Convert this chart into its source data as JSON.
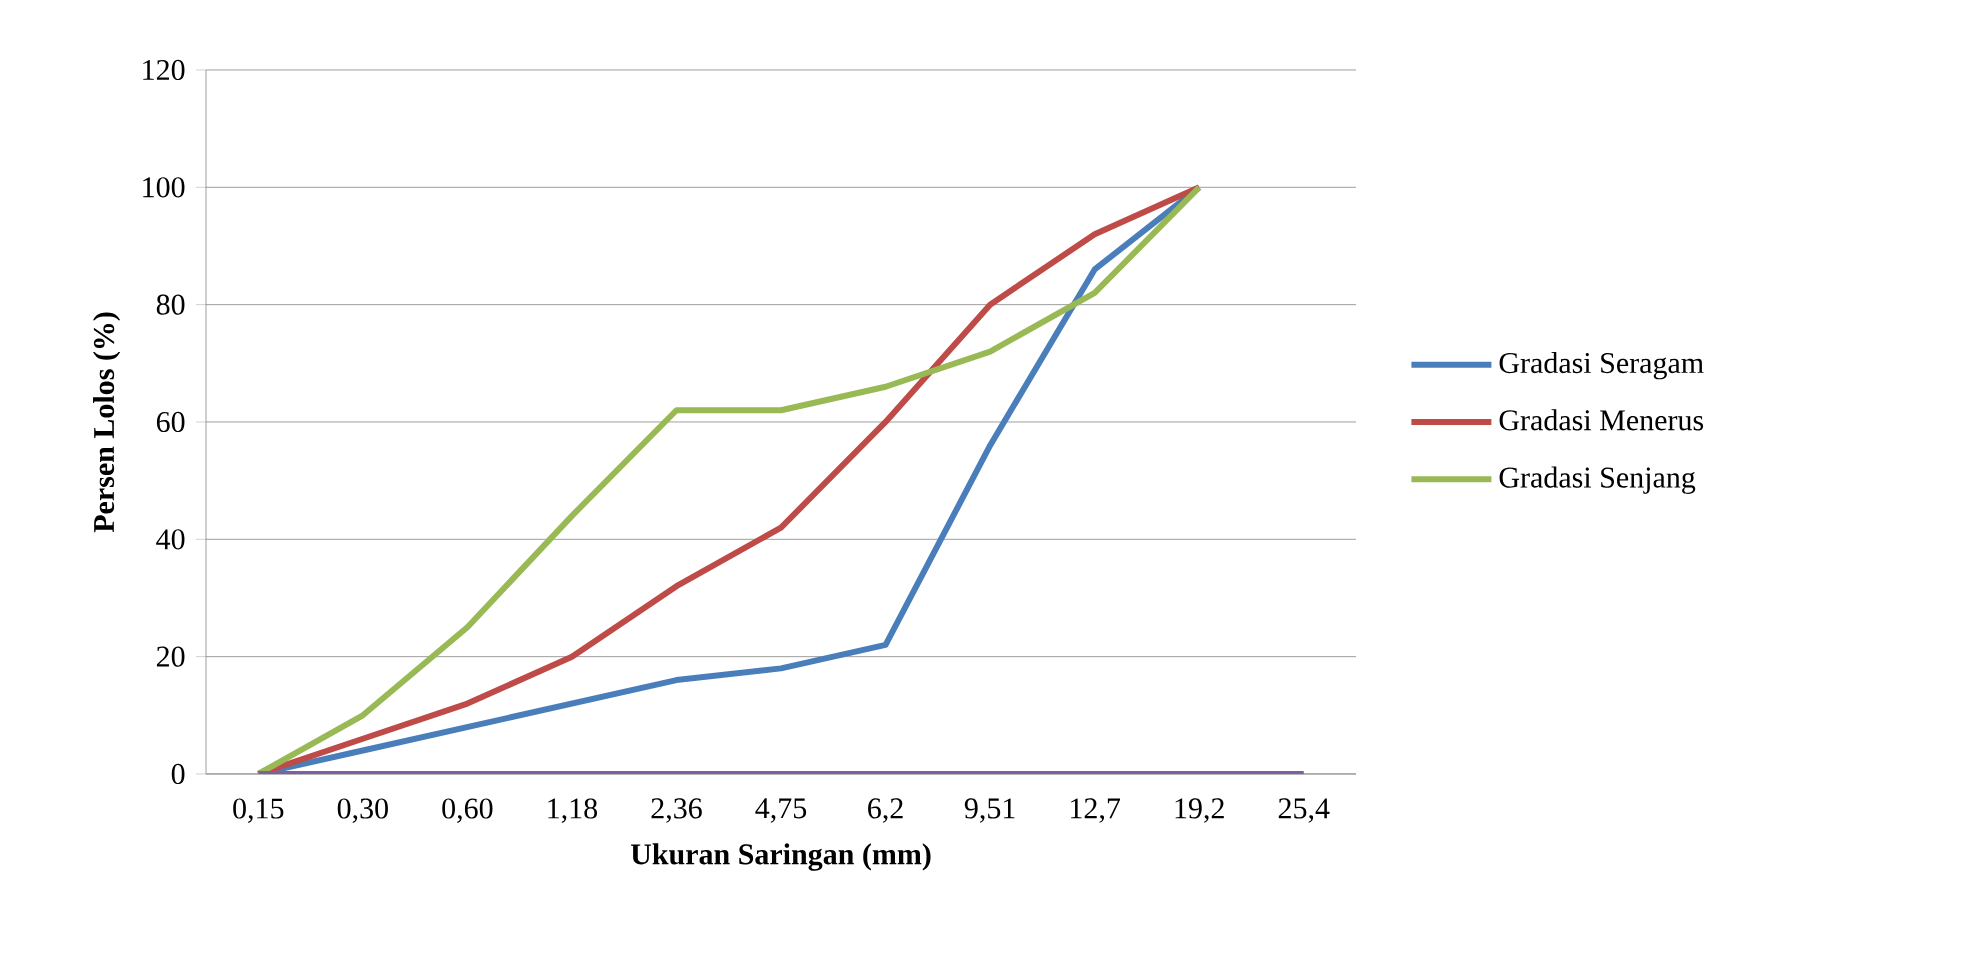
{
  "chart_data": {
    "type": "line",
    "xlabel": "Ukuran Saringan (mm)",
    "ylabel": "Persen Lolos (%)",
    "categories": [
      "0,15",
      "0,30",
      "0,60",
      "1,18",
      "2,36",
      "4,75",
      "6,2",
      "9,51",
      "12,7",
      "19,2",
      "25,4"
    ],
    "series": [
      {
        "name": "Gradasi Seragam",
        "color": "#4a7ebb",
        "values": [
          0,
          4,
          8,
          12,
          16,
          18,
          22,
          56,
          86,
          100,
          null
        ]
      },
      {
        "name": "Gradasi Menerus",
        "color": "#be4b48",
        "values": [
          0,
          6,
          12,
          20,
          32,
          42,
          60,
          80,
          92,
          100,
          null
        ]
      },
      {
        "name": "Gradasi Senjang",
        "color": "#98b954",
        "values": [
          0,
          10,
          25,
          44,
          62,
          62,
          66,
          72,
          82,
          100,
          null
        ]
      },
      {
        "color": "#7d60a0",
        "values": [
          0,
          0,
          0,
          0,
          0,
          0,
          0,
          0,
          0,
          0,
          0
        ]
      }
    ],
    "ylim": [
      0,
      120
    ],
    "yticks": [
      0,
      20,
      40,
      60,
      80,
      100,
      120
    ],
    "grid": "y",
    "legend": "right",
    "marker": "none",
    "line_style": "solid"
  }
}
